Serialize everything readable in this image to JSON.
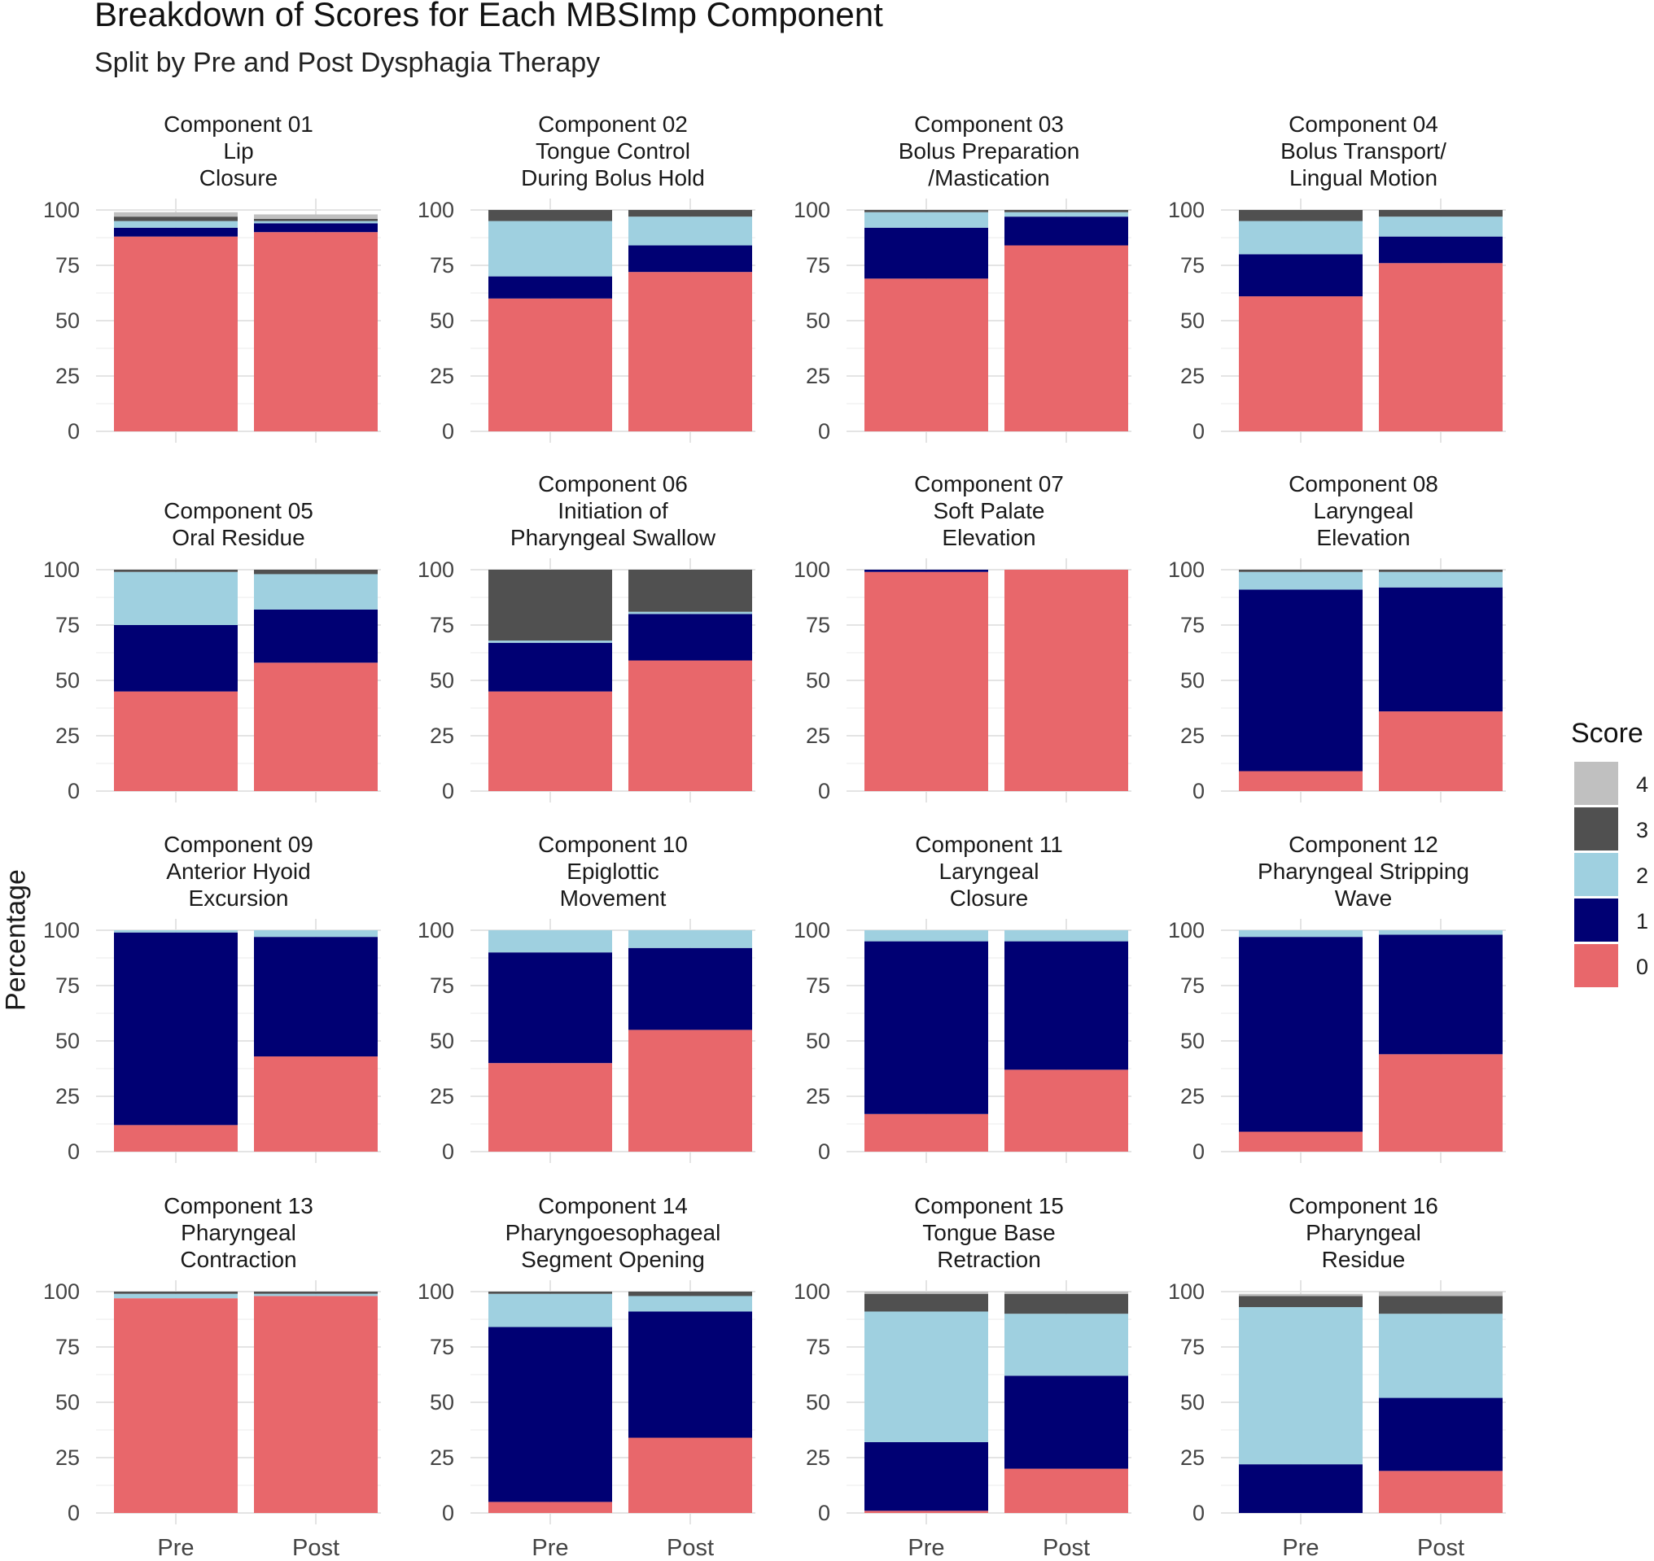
{
  "chart_data": {
    "type": "bar",
    "stacked": true,
    "title": "Breakdown of Scores for Each MBSImp Component",
    "subtitle": "Split by Pre and Post Dysphagia Therapy",
    "ylabel": "Percentage",
    "xlabel": "",
    "categories": [
      "Pre",
      "Post"
    ],
    "ylim": [
      0,
      100
    ],
    "yticks": [
      0,
      25,
      50,
      75,
      100
    ],
    "legend": {
      "title": "Score",
      "placement": "right",
      "entries": [
        {
          "label": "4",
          "color": "#c0c0c0"
        },
        {
          "label": "3",
          "color": "#505050"
        },
        {
          "label": "2",
          "color": "#9fd0e0"
        },
        {
          "label": "1",
          "color": "#000073"
        },
        {
          "label": "0",
          "color": "#e8676b"
        }
      ]
    },
    "score_order": [
      "0",
      "1",
      "2",
      "3",
      "4"
    ],
    "colors": {
      "0": "#e8676b",
      "1": "#000073",
      "2": "#9fd0e0",
      "3": "#505050",
      "4": "#c0c0c0"
    },
    "panels": [
      {
        "strip": [
          "Component 01",
          "Lip",
          "Closure"
        ],
        "bars": [
          {
            "label": "Pre",
            "values": [
              88,
              4,
              3,
              2,
              2
            ]
          },
          {
            "label": "Post",
            "values": [
              90,
              4,
              1,
              1,
              2
            ]
          }
        ]
      },
      {
        "strip": [
          "Component 02",
          "Tongue Control",
          "During Bolus Hold"
        ],
        "bars": [
          {
            "label": "Pre",
            "values": [
              60,
              10,
              25,
              5,
              0
            ]
          },
          {
            "label": "Post",
            "values": [
              72,
              12,
              13,
              3,
              0
            ]
          }
        ]
      },
      {
        "strip": [
          "Component 03",
          "Bolus Preparation",
          "/Mastication"
        ],
        "bars": [
          {
            "label": "Pre",
            "values": [
              69,
              23,
              7,
              1,
              0
            ]
          },
          {
            "label": "Post",
            "values": [
              84,
              13,
              2,
              1,
              0
            ]
          }
        ]
      },
      {
        "strip": [
          "Component 04",
          "Bolus Transport/",
          "Lingual Motion"
        ],
        "bars": [
          {
            "label": "Pre",
            "values": [
              61,
              19,
              15,
              5,
              0
            ]
          },
          {
            "label": "Post",
            "values": [
              76,
              12,
              9,
              3,
              0
            ]
          }
        ]
      },
      {
        "strip": [
          "Component 05",
          "Oral Residue"
        ],
        "bars": [
          {
            "label": "Pre",
            "values": [
              45,
              30,
              24,
              1,
              0
            ]
          },
          {
            "label": "Post",
            "values": [
              58,
              24,
              16,
              2,
              0
            ]
          }
        ]
      },
      {
        "strip": [
          "Component 06",
          "Initiation of",
          "Pharyngeal Swallow"
        ],
        "bars": [
          {
            "label": "Pre",
            "values": [
              45,
              22,
              1,
              32,
              0
            ]
          },
          {
            "label": "Post",
            "values": [
              59,
              21,
              1,
              19,
              0
            ]
          }
        ]
      },
      {
        "strip": [
          "Component 07",
          "Soft Palate",
          "Elevation"
        ],
        "bars": [
          {
            "label": "Pre",
            "values": [
              99,
              1,
              0,
              0,
              0
            ]
          },
          {
            "label": "Post",
            "values": [
              100,
              0,
              0,
              0,
              0
            ]
          }
        ]
      },
      {
        "strip": [
          "Component 08",
          "Laryngeal",
          "Elevation"
        ],
        "bars": [
          {
            "label": "Pre",
            "values": [
              9,
              82,
              8,
              1,
              0
            ]
          },
          {
            "label": "Post",
            "values": [
              36,
              56,
              7,
              1,
              0
            ]
          }
        ]
      },
      {
        "strip": [
          "Component 09",
          "Anterior Hyoid",
          "Excursion"
        ],
        "bars": [
          {
            "label": "Pre",
            "values": [
              12,
              87,
              1,
              0,
              0
            ]
          },
          {
            "label": "Post",
            "values": [
              43,
              54,
              3,
              0,
              0
            ]
          }
        ]
      },
      {
        "strip": [
          "Component 10",
          "Epiglottic",
          "Movement"
        ],
        "bars": [
          {
            "label": "Pre",
            "values": [
              40,
              50,
              10,
              0,
              0
            ]
          },
          {
            "label": "Post",
            "values": [
              55,
              37,
              8,
              0,
              0
            ]
          }
        ]
      },
      {
        "strip": [
          "Component 11",
          "Laryngeal",
          "Closure"
        ],
        "bars": [
          {
            "label": "Pre",
            "values": [
              17,
              78,
              5,
              0,
              0
            ]
          },
          {
            "label": "Post",
            "values": [
              37,
              58,
              5,
              0,
              0
            ]
          }
        ]
      },
      {
        "strip": [
          "Component 12",
          "Pharyngeal Stripping",
          "Wave"
        ],
        "bars": [
          {
            "label": "Pre",
            "values": [
              9,
              88,
              3,
              0,
              0
            ]
          },
          {
            "label": "Post",
            "values": [
              44,
              54,
              2,
              0,
              0
            ]
          }
        ]
      },
      {
        "strip": [
          "Component 13",
          "Pharyngeal",
          "Contraction"
        ],
        "bars": [
          {
            "label": "Pre",
            "values": [
              97,
              0,
              2,
              1,
              0
            ]
          },
          {
            "label": "Post",
            "values": [
              98,
              0,
              1,
              1,
              0
            ]
          }
        ]
      },
      {
        "strip": [
          "Component 14",
          "Pharyngoesophageal",
          "Segment Opening"
        ],
        "bars": [
          {
            "label": "Pre",
            "values": [
              5,
              79,
              15,
              1,
              0
            ]
          },
          {
            "label": "Post",
            "values": [
              34,
              57,
              7,
              2,
              0
            ]
          }
        ]
      },
      {
        "strip": [
          "Component 15",
          "Tongue Base",
          "Retraction"
        ],
        "bars": [
          {
            "label": "Pre",
            "values": [
              1,
              31,
              59,
              8,
              1
            ]
          },
          {
            "label": "Post",
            "values": [
              20,
              42,
              28,
              9,
              1
            ]
          }
        ]
      },
      {
        "strip": [
          "Component 16",
          "Pharyngeal",
          "Residue"
        ],
        "bars": [
          {
            "label": "Pre",
            "values": [
              0,
              22,
              71,
              5,
              1
            ]
          },
          {
            "label": "Post",
            "values": [
              19,
              33,
              38,
              8,
              2
            ]
          }
        ]
      }
    ]
  }
}
